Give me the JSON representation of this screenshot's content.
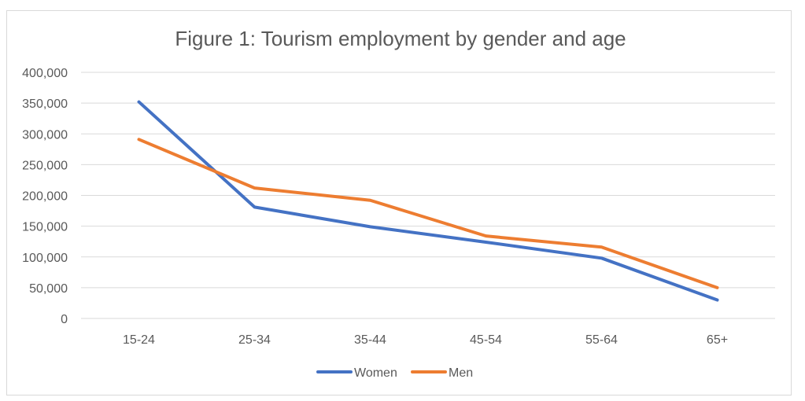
{
  "chart_data": {
    "type": "line",
    "title": "Figure 1: Tourism employment by gender and age",
    "xlabel": "",
    "ylabel": "",
    "categories": [
      "15-24",
      "25-34",
      "35-44",
      "45-54",
      "55-64",
      "65+"
    ],
    "ylim": [
      0,
      400000
    ],
    "yticks": [
      "0",
      "50,000",
      "100,000",
      "150,000",
      "200,000",
      "250,000",
      "300,000",
      "350,000",
      "400,000"
    ],
    "grid": true,
    "legend_position": "bottom",
    "series": [
      {
        "name": "Women",
        "color": "#4472c4",
        "values": [
          352000,
          181000,
          149000,
          124000,
          98000,
          30000
        ]
      },
      {
        "name": "Men",
        "color": "#ed7d31",
        "values": [
          291000,
          212000,
          192000,
          134000,
          116000,
          50000
        ]
      }
    ]
  }
}
